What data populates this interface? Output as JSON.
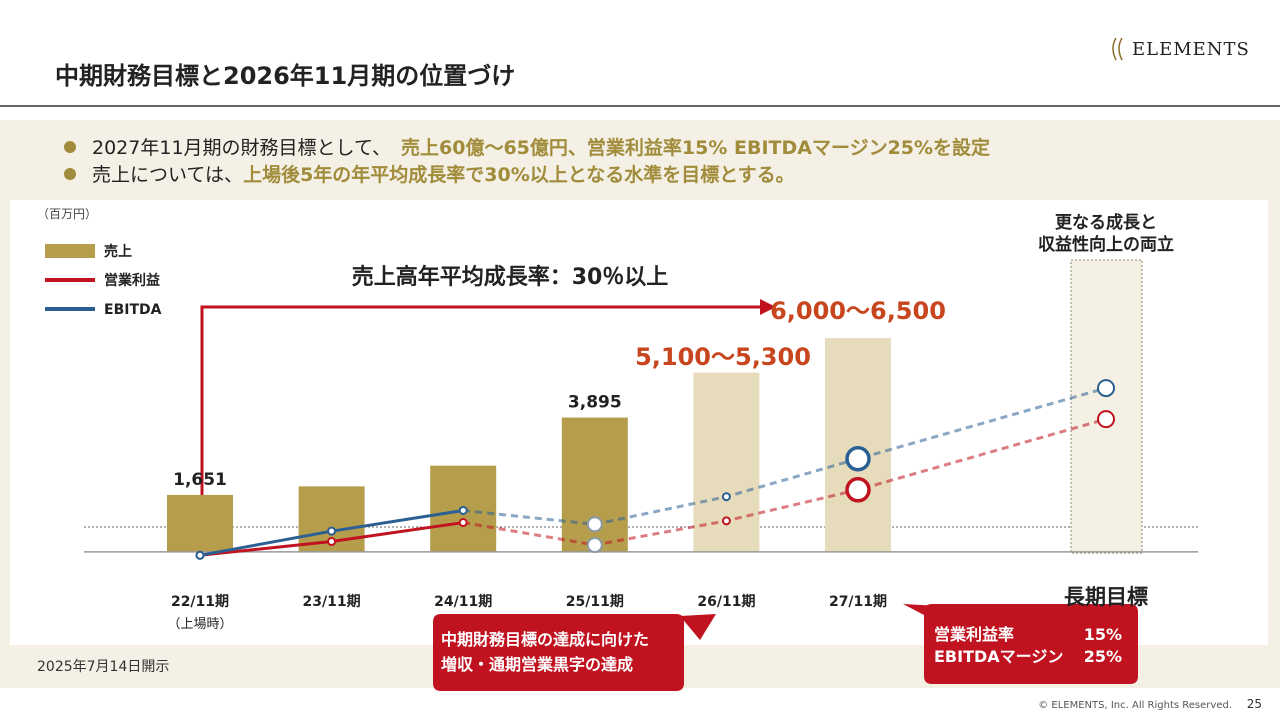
{
  "header": {
    "title": "中期財務目標と2026年11月期の位置づけ",
    "logo": "ELEMENTS"
  },
  "bullets": [
    {
      "text": "2027年11月期の財務目標として、",
      "highlight": "売上60億〜65億円、営業利益率15% EBITDAマージン25%を設定"
    },
    {
      "text": "売上については、",
      "highlight": "上場後5年の年平均成長率で30%以上となる水準を目標とする。"
    }
  ],
  "chart_data": {
    "type": "bar",
    "unit": "（百万円）",
    "categories": [
      "22/11期",
      "23/11期",
      "24/11期",
      "25/11期",
      "26/11期",
      "27/11期",
      "長期目標"
    ],
    "category_note": "（上場時）",
    "ylim": [
      -700,
      7000
    ],
    "dashed_from": 2,
    "series": [
      {
        "name": "売上",
        "type": "bar",
        "color": "#b59d4c",
        "colors": [
          "#b59d4c",
          "#b59d4c",
          "#b59d4c",
          "#b59d4c",
          "#e6dcbc",
          "#e6dcbc",
          null
        ],
        "values": [
          1651,
          1900,
          2500,
          3895,
          5200,
          6200,
          null
        ],
        "value_labels": [
          "1,651",
          null,
          null,
          "3,895",
          null,
          null,
          null
        ]
      },
      {
        "name": "営業利益",
        "type": "line",
        "color": "#c0121f",
        "values": [
          -100,
          300,
          850,
          200,
          900,
          1800,
          3850
        ]
      },
      {
        "name": "EBITDA",
        "type": "line",
        "color": "#2a5f93",
        "values": [
          -100,
          600,
          1200,
          800,
          1600,
          2700,
          4750
        ]
      }
    ],
    "annotations": {
      "growth": "売上高年平均成長率：30％以上",
      "range_26": "5,100〜5,300",
      "range_27": "6,000〜6,500",
      "longterm": [
        "更なる成長と",
        "収益性向上の両立"
      ],
      "callout_left": [
        "中期財務目標の達成に向けた",
        "増収・通期営業黒字の達成"
      ],
      "callout_right": [
        [
          "営業利益率",
          "15%"
        ],
        [
          "EBITDAマージン",
          "25%"
        ]
      ]
    }
  },
  "footer": {
    "date": "2025年7月14日開示",
    "copyright": "© ELEMENTS, Inc. All Rights Reserved.",
    "page": "25"
  }
}
